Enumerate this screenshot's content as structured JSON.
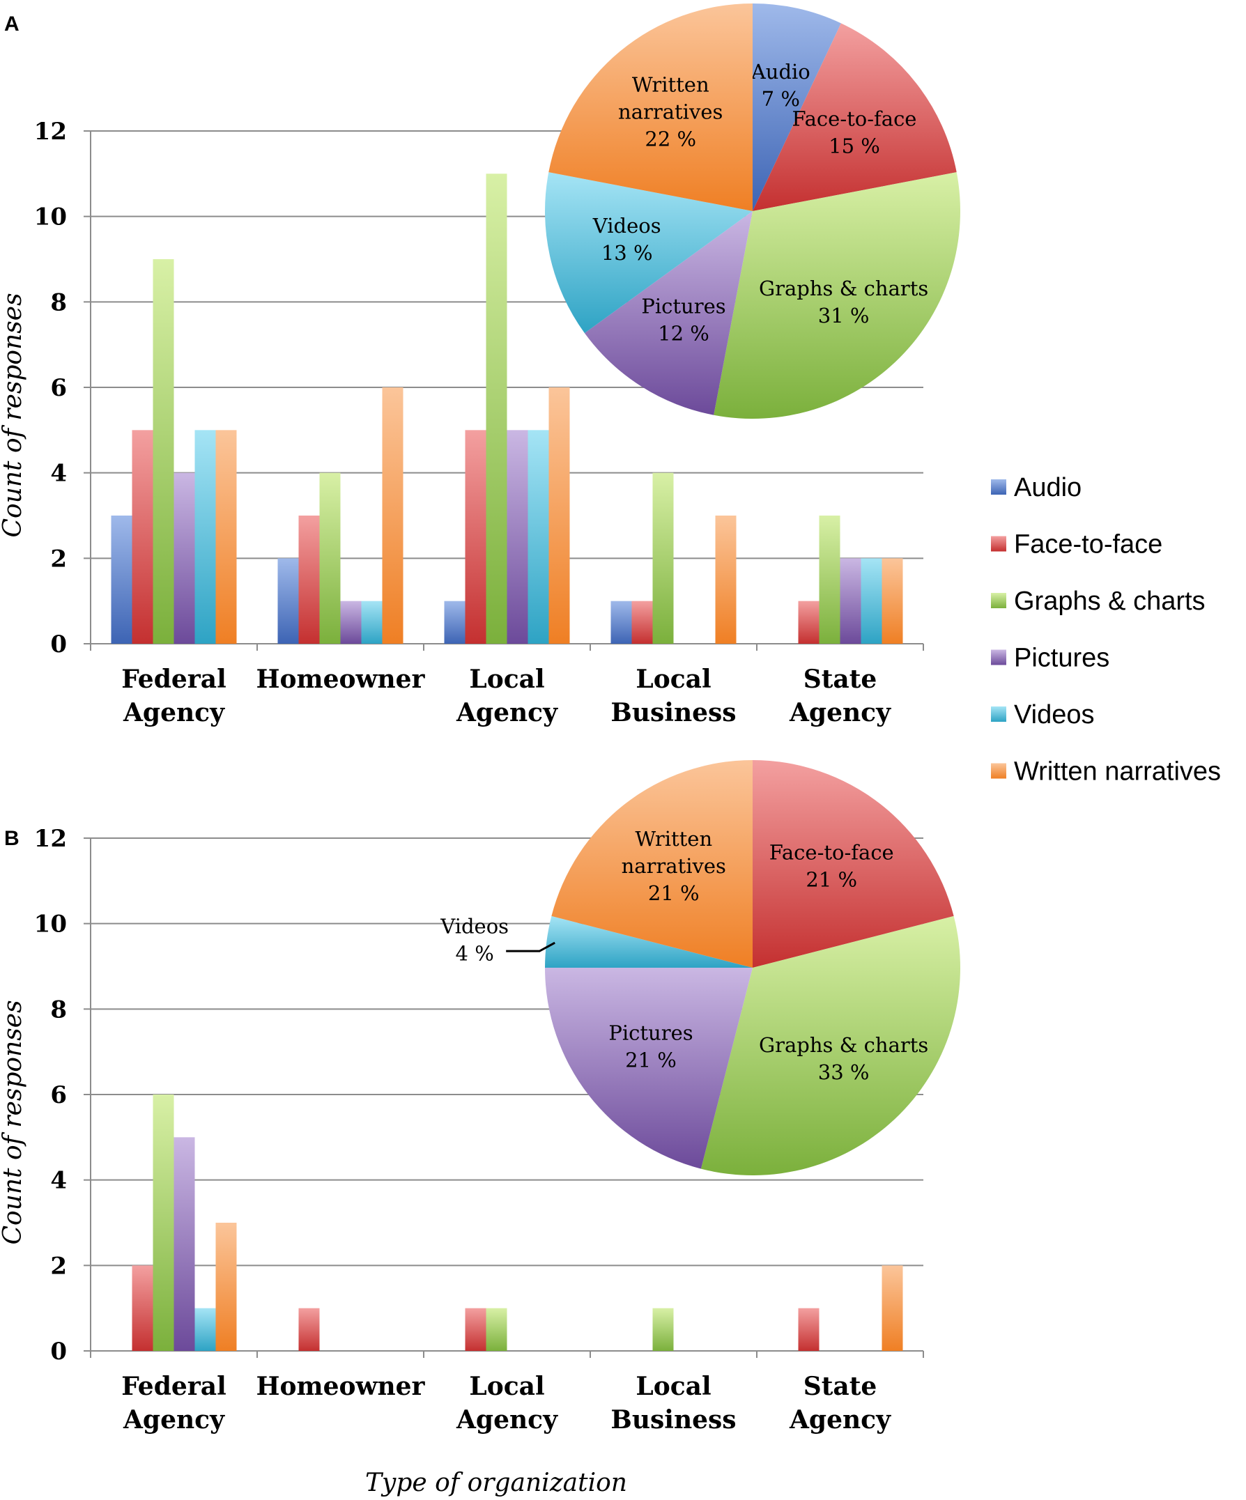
{
  "figure_panels": [
    "A",
    "B"
  ],
  "colors": {
    "Audio": [
      "#9fb9ea",
      "#3d64b4"
    ],
    "Face-to-face": [
      "#f3a0a0",
      "#c43030"
    ],
    "Graphs & charts": [
      "#d8f0a6",
      "#7bb03c"
    ],
    "Pictures": [
      "#cab7e3",
      "#6c4a9a"
    ],
    "Videos": [
      "#a5e4f5",
      "#2ea3c4"
    ],
    "Written narratives": [
      "#fbc59a",
      "#ef7f24"
    ]
  },
  "legend": [
    "Audio",
    "Face-to-face",
    "Graphs & charts",
    "Pictures",
    "Videos",
    "Written narratives"
  ],
  "chart_data": [
    {
      "type": "bar",
      "panel": "A",
      "categories": [
        [
          "Federal",
          "Agency"
        ],
        [
          "Homeowner"
        ],
        [
          "Local",
          "Agency"
        ],
        [
          "Local",
          "Business"
        ],
        [
          "State",
          "Agency"
        ]
      ],
      "series": [
        {
          "name": "Audio",
          "values": [
            3,
            2,
            1,
            1,
            0
          ]
        },
        {
          "name": "Face-to-face",
          "values": [
            5,
            3,
            5,
            1,
            1
          ]
        },
        {
          "name": "Graphs & charts",
          "values": [
            9,
            4,
            11,
            4,
            3
          ]
        },
        {
          "name": "Pictures",
          "values": [
            4,
            1,
            5,
            0,
            2
          ]
        },
        {
          "name": "Videos",
          "values": [
            5,
            1,
            5,
            0,
            2
          ]
        },
        {
          "name": "Written narratives",
          "values": [
            5,
            6,
            6,
            3,
            2
          ]
        }
      ],
      "ylabel": "Count of responses",
      "ylim": [
        0,
        12
      ],
      "yticks": [
        0,
        2,
        4,
        6,
        8,
        10,
        12
      ],
      "grid": true
    },
    {
      "type": "pie",
      "panel": "A",
      "slices": [
        {
          "name": "Audio",
          "value": 7,
          "label": [
            "Audio",
            "7 %"
          ]
        },
        {
          "name": "Face-to-face",
          "value": 15,
          "label": [
            "Face-to-face",
            "15 %"
          ]
        },
        {
          "name": "Graphs & charts",
          "value": 31,
          "label": [
            "Graphs & charts",
            "31 %"
          ]
        },
        {
          "name": "Pictures",
          "value": 12,
          "label": [
            "Pictures",
            "12 %"
          ]
        },
        {
          "name": "Videos",
          "value": 13,
          "label": [
            "Videos",
            "13 %"
          ]
        },
        {
          "name": "Written narratives",
          "value": 22,
          "label": [
            "Written",
            "narratives",
            "22 %"
          ]
        }
      ]
    },
    {
      "type": "bar",
      "panel": "B",
      "categories": [
        [
          "Federal",
          "Agency"
        ],
        [
          "Homeowner"
        ],
        [
          "Local",
          "Agency"
        ],
        [
          "Local",
          "Business"
        ],
        [
          "State",
          "Agency"
        ]
      ],
      "series": [
        {
          "name": "Audio",
          "values": [
            0,
            0,
            0,
            0,
            0
          ]
        },
        {
          "name": "Face-to-face",
          "values": [
            2,
            1,
            1,
            0,
            1
          ]
        },
        {
          "name": "Graphs & charts",
          "values": [
            6,
            0,
            1,
            1,
            0
          ]
        },
        {
          "name": "Pictures",
          "values": [
            5,
            0,
            0,
            0,
            0
          ]
        },
        {
          "name": "Videos",
          "values": [
            1,
            0,
            0,
            0,
            0
          ]
        },
        {
          "name": "Written narratives",
          "values": [
            3,
            0,
            0,
            0,
            2
          ]
        }
      ],
      "ylabel": "Count of responses",
      "xlabel": "Type of organization",
      "ylim": [
        0,
        12
      ],
      "yticks": [
        0,
        2,
        4,
        6,
        8,
        10,
        12
      ],
      "grid": true
    },
    {
      "type": "pie",
      "panel": "B",
      "slices": [
        {
          "name": "Face-to-face",
          "value": 21,
          "label": [
            "Face-to-face",
            "21 %"
          ]
        },
        {
          "name": "Graphs & charts",
          "value": 33,
          "label": [
            "Graphs & charts",
            "33 %"
          ]
        },
        {
          "name": "Pictures",
          "value": 21,
          "label": [
            "Pictures",
            "21 %"
          ]
        },
        {
          "name": "Videos",
          "value": 4,
          "label": [
            "Videos",
            "4 %"
          ]
        },
        {
          "name": "Written narratives",
          "value": 21,
          "label": [
            "Written",
            "narratives",
            "21 %"
          ]
        }
      ]
    }
  ]
}
